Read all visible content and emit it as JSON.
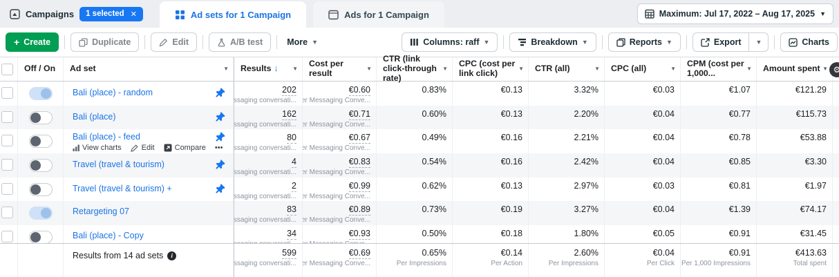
{
  "tab_bar": {
    "campaigns_label": "Campaigns",
    "selected_badge": "1 selected",
    "badge_close": "✕",
    "adsets_label": "Ad sets for 1 Campaign",
    "ads_label": "Ads for 1 Campaign",
    "date_range": "Maximum: Jul 17, 2022 – Aug 17, 2025"
  },
  "toolbar": {
    "create": "Create",
    "duplicate": "Duplicate",
    "edit": "Edit",
    "ab_test": "A/B test",
    "more": "More",
    "columns": "Columns: raff",
    "breakdown": "Breakdown",
    "reports": "Reports",
    "export": "Export",
    "charts": "Charts"
  },
  "colors": {
    "accent": "#1b74e4",
    "badge": "#1877f2",
    "create_green": "#009e52"
  },
  "table": {
    "columns": [
      {
        "id": "toggle",
        "label": "Off / On",
        "caret": false
      },
      {
        "id": "adset",
        "label": "Ad set",
        "caret": true
      },
      {
        "id": "results",
        "label": "Results",
        "sorted": "desc",
        "caret": true
      },
      {
        "id": "cost_per_result",
        "label": "Cost per result",
        "caret": true
      },
      {
        "id": "ctr_link",
        "label": "CTR (link click-through rate)",
        "caret": true
      },
      {
        "id": "cpc_link",
        "label": "CPC (cost per link click)",
        "caret": true
      },
      {
        "id": "ctr_all",
        "label": "CTR (all)",
        "caret": true
      },
      {
        "id": "cpc_all",
        "label": "CPC (all)",
        "caret": true
      },
      {
        "id": "cpm",
        "label": "CPM (cost per 1,000...",
        "caret": true
      },
      {
        "id": "amount_spent",
        "label": "Amount spent",
        "caret": true
      }
    ],
    "results_sublabel": "Messaging conversati...",
    "cost_sublabel": "Per Messaging Conve...",
    "rows": [
      {
        "name": "Bali (place) - random",
        "pinned": true,
        "on": true,
        "results": "202",
        "cost": "€0.60",
        "ctr_link": "0.83%",
        "cpc_link": "€0.13",
        "ctr_all": "3.32%",
        "cpc_all": "€0.03",
        "cpm": "€1.07",
        "amount": "€121.29"
      },
      {
        "name": "Bali (place)",
        "pinned": true,
        "on": false,
        "results": "162",
        "cost": "€0.71",
        "ctr_link": "0.60%",
        "cpc_link": "€0.13",
        "ctr_all": "2.20%",
        "cpc_all": "€0.04",
        "cpm": "€0.77",
        "amount": "€115.73"
      },
      {
        "name": "Bali (place) - feed",
        "pinned": true,
        "on": false,
        "actions": [
          "View charts",
          "Edit",
          "Compare",
          "•••"
        ],
        "results": "80",
        "cost": "€0.67",
        "ctr_link": "0.49%",
        "cpc_link": "€0.16",
        "ctr_all": "2.21%",
        "cpc_all": "€0.04",
        "cpm": "€0.78",
        "amount": "€53.88"
      },
      {
        "name": "Travel (travel & tourism)",
        "pinned": true,
        "on": false,
        "results": "4",
        "cost": "€0.83",
        "ctr_link": "0.54%",
        "cpc_link": "€0.16",
        "ctr_all": "2.42%",
        "cpc_all": "€0.04",
        "cpm": "€0.85",
        "amount": "€3.30"
      },
      {
        "name": "Travel (travel & tourism) +",
        "pinned": true,
        "on": false,
        "results": "2",
        "cost": "€0.99",
        "ctr_link": "0.62%",
        "cpc_link": "€0.13",
        "ctr_all": "2.97%",
        "cpc_all": "€0.03",
        "cpm": "€0.81",
        "amount": "€1.97"
      },
      {
        "name": "Retargeting 07",
        "pinned": false,
        "on": true,
        "results": "83",
        "cost": "€0.89",
        "ctr_link": "0.73%",
        "cpc_link": "€0.19",
        "ctr_all": "3.27%",
        "cpc_all": "€0.04",
        "cpm": "€1.39",
        "amount": "€74.17"
      },
      {
        "name": "Bali (place) - Copy",
        "pinned": false,
        "on": false,
        "results": "34",
        "cost": "€0.93",
        "ctr_link": "0.50%",
        "cpc_link": "€0.18",
        "ctr_all": "1.80%",
        "cpc_all": "€0.05",
        "cpm": "€0.91",
        "amount": "€31.45"
      }
    ],
    "footer": {
      "label": "Results from 14 ad sets",
      "results": "599",
      "results_sub": "Messaging conversati...",
      "cost": "€0.69",
      "cost_sub": "Per Messaging Conve...",
      "ctr_link": "0.65%",
      "ctr_link_sub": "Per Impressions",
      "cpc_link": "€0.14",
      "cpc_link_sub": "Per Action",
      "ctr_all": "2.60%",
      "ctr_all_sub": "Per Impressions",
      "cpc_all": "€0.04",
      "cpc_all_sub": "Per Click",
      "cpm": "€0.91",
      "cpm_sub": "Per 1,000 Impressions",
      "amount": "€413.63",
      "amount_sub": "Total spent"
    }
  }
}
